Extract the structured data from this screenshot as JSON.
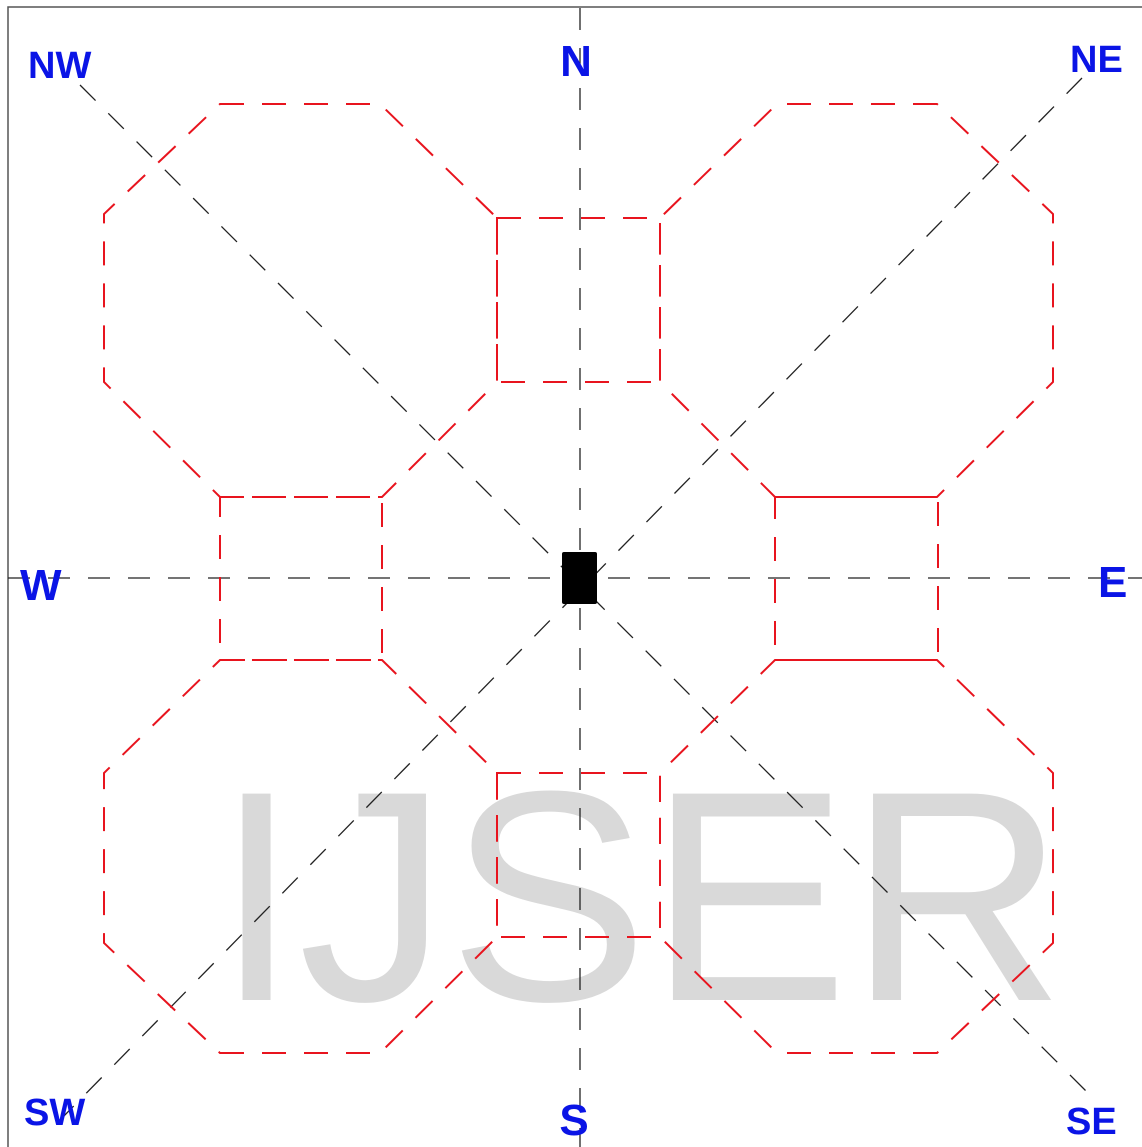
{
  "directions": {
    "nw": "NW",
    "n": "N",
    "ne": "NE",
    "w": "W",
    "e": "E",
    "sw": "SW",
    "s": "S",
    "se": "SE"
  },
  "watermark": "IJSER"
}
